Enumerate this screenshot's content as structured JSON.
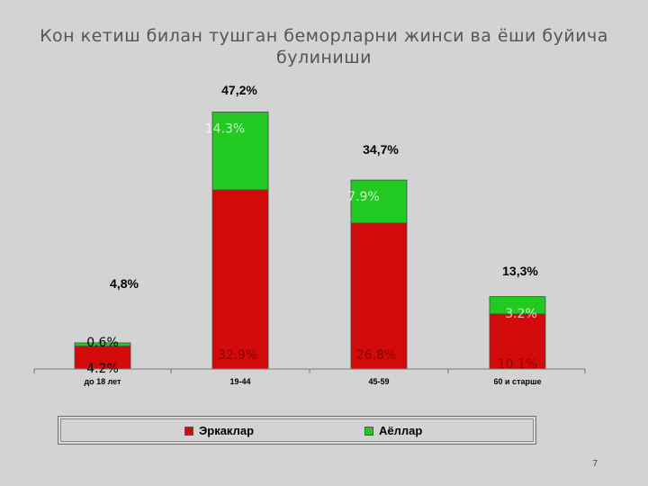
{
  "page_number": "7",
  "colors": {
    "men": "#d20a0a",
    "women": "#22c922"
  },
  "chart_data": {
    "type": "bar",
    "stacked": true,
    "title": "Кон кетиш билан тушган беморларни жинси ва ёши буйича булиниши",
    "categories": [
      "до 18 лет",
      "19-44",
      "45-59",
      "60 и старше"
    ],
    "series": [
      {
        "name": "Эркаклар",
        "values": [
          4.2,
          32.9,
          26.8,
          10.1
        ],
        "labels": [
          "4.2%",
          "32.9%",
          "26.8%",
          "10.1%"
        ]
      },
      {
        "name": "Аёллар",
        "values": [
          0.6,
          14.3,
          7.9,
          3.2
        ],
        "labels": [
          "0.6%",
          "14.3%",
          "7.9%",
          "3.2%"
        ]
      }
    ],
    "totals": [
      4.8,
      47.2,
      34.7,
      13.3
    ],
    "total_labels": [
      "4,8%",
      "47,2%",
      "34,7%",
      "13,3%"
    ],
    "ylim": [
      0,
      50
    ],
    "legend": "bottom",
    "grid": false
  }
}
